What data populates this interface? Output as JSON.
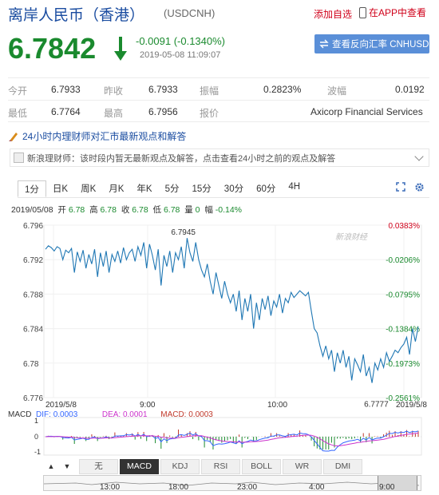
{
  "header": {
    "title": "离岸人民币（香港）",
    "symbol": "(USDCNH)",
    "add_watch": "添加自选",
    "open_app": "在APP中查看"
  },
  "quote": {
    "price": "6.7842",
    "change": "-0.0091 (-0.1340%)",
    "time": "2019-05-08 11:09:07",
    "reverse_button": "查看反向汇率 CNHUSD"
  },
  "stats": {
    "row1": [
      {
        "label": "今开",
        "value": "6.7933"
      },
      {
        "label": "昨收",
        "value": "6.7933"
      },
      {
        "label": "振幅",
        "value": "0.2823%"
      },
      {
        "label": "波幅",
        "value": "0.0192"
      }
    ],
    "row2": [
      {
        "label": "最低",
        "value": "6.7764"
      },
      {
        "label": "最高",
        "value": "6.7956"
      },
      {
        "label": "报价",
        "value": "Axicorp Financial Services"
      }
    ]
  },
  "news": {
    "heading": "24小时内理财师对汇市最新观点和解答",
    "message": "新浪理财师：该时段内暂无最新观点及解答，点击查看24小时之前的观点及解答"
  },
  "tabs": [
    "1分",
    "日K",
    "周K",
    "月K",
    "年K",
    "5分",
    "15分",
    "30分",
    "60分",
    "4H"
  ],
  "active_tab": "1分",
  "info_bar": {
    "date": "2019/05/08",
    "open_label": "开",
    "open": "6.78",
    "high_label": "高",
    "high": "6.78",
    "close_label": "收",
    "close": "6.78",
    "low_label": "低",
    "low": "6.78",
    "vol_label": "量",
    "vol": "0",
    "amp_label": "幅",
    "amp": "-0.14%"
  },
  "chart_data": {
    "type": "line",
    "watermark": "新浪财经",
    "y_ticks_left": [
      "6.796",
      "6.792",
      "6.788",
      "6.784",
      "6.78",
      "6.776"
    ],
    "y_ticks_right": [
      "0.0383%",
      "-0.0206%",
      "-0.0795%",
      "-0.1384%",
      "-0.1973%",
      "-0.2561%"
    ],
    "x_ticks": [
      "2019/5/8",
      "9:00",
      "10:00",
      "2019/5/8"
    ],
    "ylim": [
      6.776,
      6.796
    ],
    "annotations": [
      {
        "text": "6.7945"
      },
      {
        "text": "6.7777"
      }
    ],
    "series": [
      {
        "values": [
          6.7932,
          6.7936,
          6.7934,
          6.793,
          6.7935,
          6.7933,
          6.792,
          6.7931,
          6.7928,
          6.7933,
          6.7905,
          6.7929,
          6.7918,
          6.7931,
          6.791,
          6.7926,
          6.7915,
          6.7932,
          6.79,
          6.7928,
          6.7912,
          6.793,
          6.7905,
          6.7926,
          6.7918,
          6.793,
          6.7916,
          6.7934,
          6.792,
          6.7928,
          6.7932,
          6.7918,
          6.7935,
          6.7925,
          6.794,
          6.791,
          6.7938,
          6.7925,
          6.7908,
          6.7932,
          6.789,
          6.7925,
          6.7912,
          6.793,
          6.7905,
          6.7928,
          6.792,
          6.7935,
          6.791,
          6.7945,
          6.7928,
          6.7918,
          6.794,
          6.792,
          6.7908,
          6.79,
          6.7915,
          6.7895,
          6.788,
          6.7905,
          6.789,
          6.7875,
          6.7895,
          6.788,
          6.787,
          6.788,
          6.786,
          6.7884,
          6.785,
          6.7875,
          6.786,
          6.788,
          6.784,
          6.787,
          6.785,
          6.7875,
          6.7862,
          6.7878,
          6.7855,
          6.7872,
          6.7865,
          6.788,
          6.7858,
          6.7875,
          6.787,
          6.7882,
          6.7876,
          6.788,
          6.7884,
          6.7881,
          6.7878,
          6.7882,
          6.786,
          6.784,
          6.7835,
          6.782,
          6.7808,
          6.782,
          6.7805,
          6.7815,
          6.779,
          6.7812,
          6.78,
          6.7815,
          6.7795,
          6.7808,
          6.778,
          6.7805,
          6.7798,
          6.779,
          6.781,
          6.7785,
          6.7795,
          6.7777,
          6.78,
          6.7792,
          6.7805,
          6.7795,
          6.7812,
          6.7802,
          6.7808,
          6.7815,
          6.7812,
          6.7818,
          6.7822,
          6.783,
          6.781,
          6.784,
          6.7825,
          6.7842
        ]
      }
    ]
  },
  "macd": {
    "label": "MACD",
    "dif_label": "DIF:",
    "dif": "0.0003",
    "dea_label": "DEA:",
    "dea": "0.0001",
    "macd_label": "MACD:",
    "macd": "0.0003",
    "y_ticks": [
      "1",
      "0",
      "-1"
    ]
  },
  "indicator_tabs": [
    "无",
    "MACD",
    "KDJ",
    "RSI",
    "BOLL",
    "WR",
    "DMI"
  ],
  "active_indicator": "MACD",
  "overview_labels": [
    "13:00",
    "18:00",
    "23:00",
    "4:00",
    "9:00"
  ],
  "colors": {
    "price_green": "#1a8a2e",
    "title_blue": "#1a4ca0",
    "line_blue": "#1f77b4",
    "dif": "#3366ff",
    "dea": "#cc33cc",
    "macd_red": "#c0392b",
    "macd_green": "#1a8a2e"
  }
}
